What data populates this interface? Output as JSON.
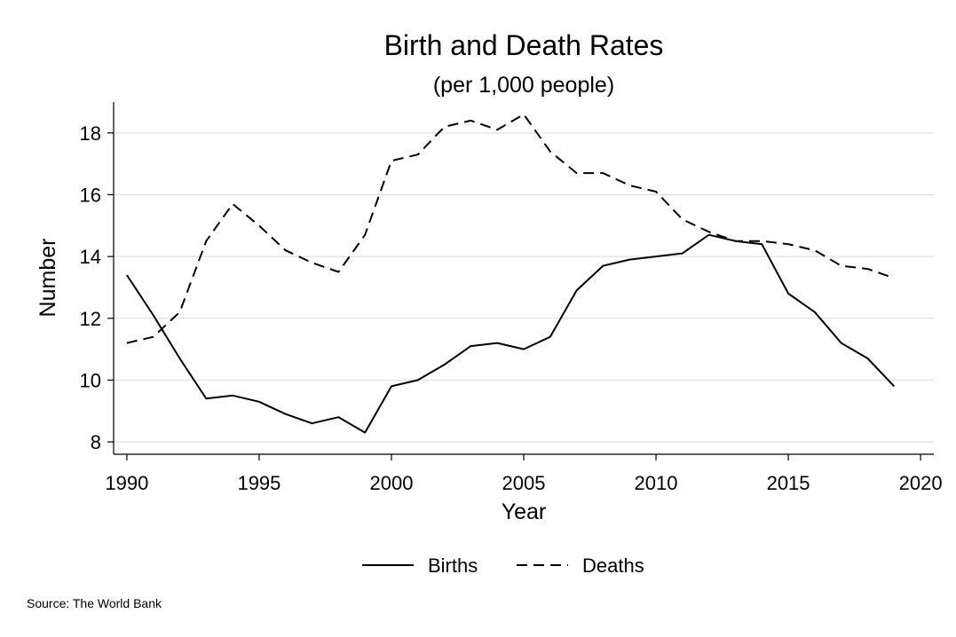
{
  "chart_data": {
    "type": "line",
    "title": "Birth and Death Rates",
    "subtitle": "(per 1,000 people)",
    "xlabel": "Year",
    "ylabel": "Number",
    "xlim": [
      1989.5,
      2020.5
    ],
    "ylim": [
      7.6,
      19.0
    ],
    "xticks": [
      1990,
      1995,
      2000,
      2005,
      2010,
      2015,
      2020
    ],
    "yticks": [
      8,
      10,
      12,
      14,
      16,
      18
    ],
    "grid": "horizontal",
    "legend": "bottom",
    "x": [
      1990,
      1991,
      1992,
      1993,
      1994,
      1995,
      1996,
      1997,
      1998,
      1999,
      2000,
      2001,
      2002,
      2003,
      2004,
      2005,
      2006,
      2007,
      2008,
      2009,
      2010,
      2011,
      2012,
      2013,
      2014,
      2015,
      2016,
      2017,
      2018,
      2019
    ],
    "series": [
      {
        "name": "Births",
        "dash": "solid",
        "color": "#000000",
        "values": [
          13.4,
          12.1,
          10.7,
          9.4,
          9.5,
          9.3,
          8.9,
          8.6,
          8.8,
          8.3,
          9.8,
          10.0,
          10.5,
          11.1,
          11.2,
          11.0,
          11.4,
          12.9,
          13.7,
          13.9,
          14.0,
          14.1,
          14.7,
          14.5,
          14.4,
          12.8,
          12.2,
          11.2,
          10.7,
          9.8
        ]
      },
      {
        "name": "Deaths",
        "dash": "dashed",
        "color": "#000000",
        "values": [
          11.2,
          11.4,
          12.2,
          14.5,
          15.7,
          15.0,
          14.2,
          13.8,
          13.5,
          14.7,
          17.1,
          17.3,
          18.2,
          18.4,
          18.1,
          18.6,
          17.4,
          16.7,
          16.7,
          16.3,
          16.1,
          15.2,
          14.8,
          14.5,
          14.5,
          14.4,
          14.2,
          13.7,
          13.6,
          13.3
        ]
      }
    ],
    "note": "Source: The World Bank"
  }
}
